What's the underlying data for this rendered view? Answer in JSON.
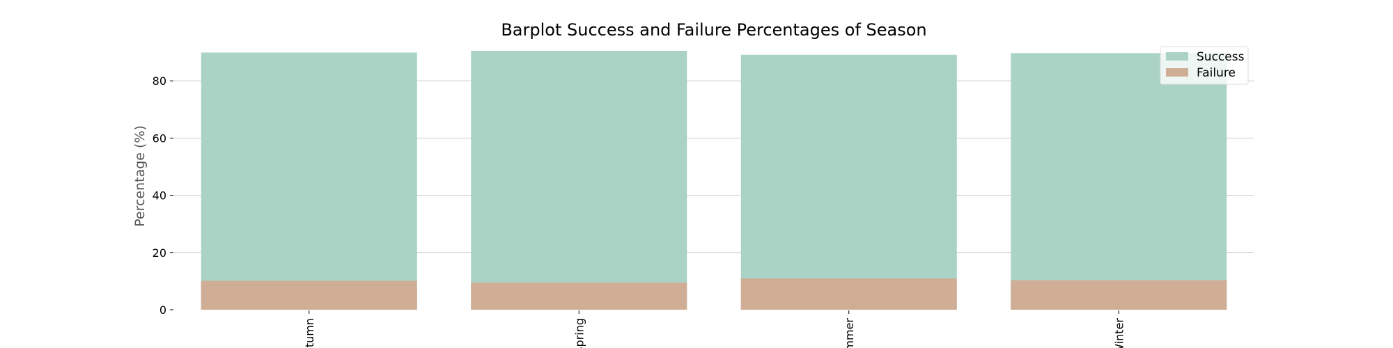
{
  "chart_data": {
    "type": "bar",
    "title": "Barplot Success and Failure Percentages of Season",
    "xlabel": "",
    "ylabel": "Percentage (%)",
    "categories": [
      "Autumn",
      "Spring",
      "Summer",
      "Winter"
    ],
    "series": [
      {
        "name": "Success",
        "values": [
          89.9,
          90.5,
          89.1,
          89.7
        ],
        "color": "#aad3c5"
      },
      {
        "name": "Failure",
        "values": [
          10.1,
          9.5,
          10.9,
          10.3
        ],
        "color": "#d0ad95"
      }
    ],
    "ylim": [
      0,
      90.5
    ],
    "yticks": [
      0,
      20,
      40,
      60,
      80
    ],
    "grid": "horizontal",
    "legend_position": "top-right"
  }
}
